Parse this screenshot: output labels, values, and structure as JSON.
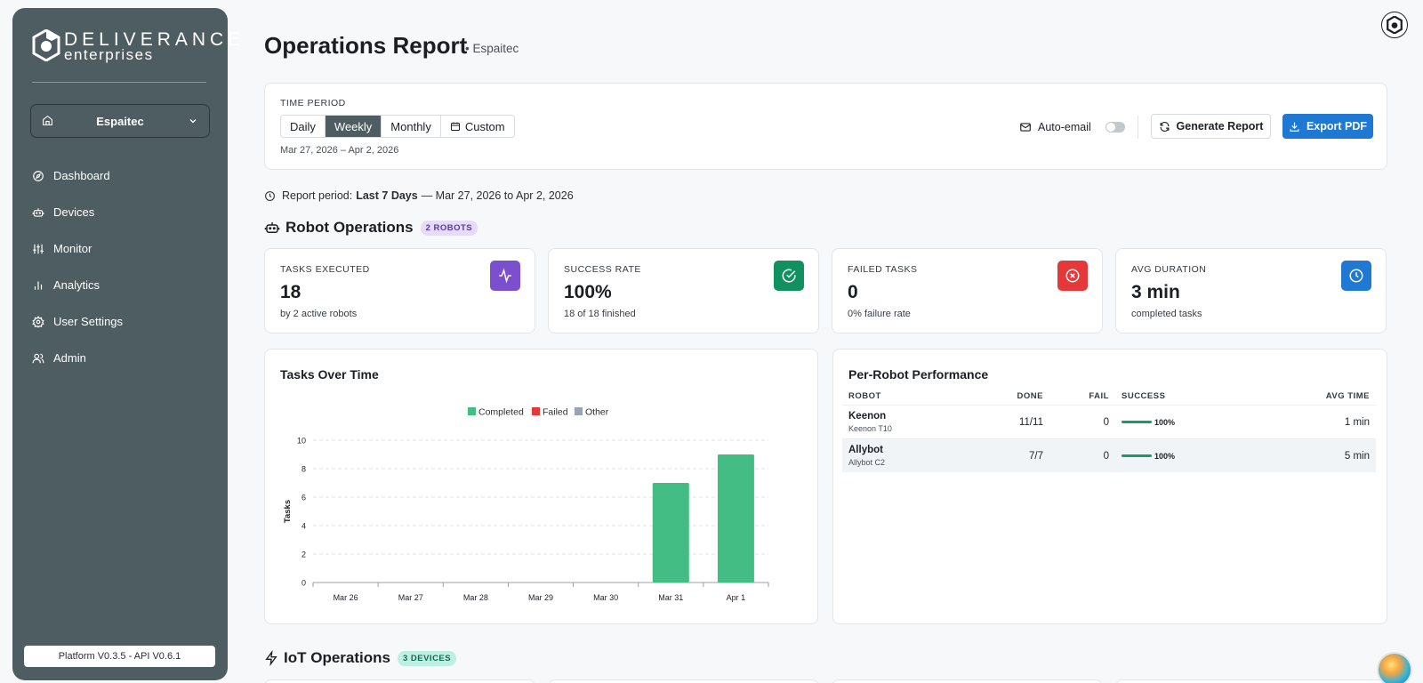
{
  "brand": {
    "name_line1": "DELIVERANCE",
    "name_line2": "enterprises"
  },
  "sidebar": {
    "org": "Espaitec",
    "items": [
      {
        "label": "Dashboard",
        "icon": "compass-icon"
      },
      {
        "label": "Devices",
        "icon": "robot-icon"
      },
      {
        "label": "Monitor",
        "icon": "sliders-icon"
      },
      {
        "label": "Analytics",
        "icon": "bar-chart-icon"
      },
      {
        "label": "User Settings",
        "icon": "gear-icon"
      },
      {
        "label": "Admin",
        "icon": "users-icon"
      }
    ],
    "version": "Platform V0.3.5 - API V0.6.1"
  },
  "header": {
    "title": "Operations Report",
    "subtitle": "• Espaitec"
  },
  "period": {
    "label": "TIME PERIOD",
    "options": [
      "Daily",
      "Weekly",
      "Monthly",
      "Custom"
    ],
    "selected": "Weekly",
    "range": "Mar 27, 2026 – Apr 2, 2026",
    "auto_email_label": "Auto-email",
    "auto_email_on": false,
    "generate_label": "Generate Report",
    "export_label": "Export PDF"
  },
  "report_period": {
    "prefix": "Report period:",
    "bold": "Last 7 Days",
    "suffix": "— Mar 27, 2026 to Apr 2, 2026"
  },
  "robot_ops": {
    "title": "Robot Operations",
    "badge": "2 ROBOTS",
    "stats": [
      {
        "label": "TASKS EXECUTED",
        "value": "18",
        "sub": "by 2 active robots",
        "icon": "activity-icon",
        "color": "#7c4fcf"
      },
      {
        "label": "SUCCESS RATE",
        "value": "100%",
        "sub": "18 of 18 finished",
        "icon": "check-circle-icon",
        "color": "#11915f"
      },
      {
        "label": "FAILED TASKS",
        "value": "0",
        "sub": "0% failure rate",
        "icon": "x-circle-icon",
        "color": "#e5383b"
      },
      {
        "label": "AVG DURATION",
        "value": "3 min",
        "sub": "completed tasks",
        "icon": "clock-icon",
        "color": "#1f78d1"
      }
    ]
  },
  "tasks_chart": {
    "title": "Tasks Over Time"
  },
  "chart_data": {
    "type": "bar",
    "title": "Tasks Over Time",
    "categories": [
      "Mar 26",
      "Mar 27",
      "Mar 28",
      "Mar 29",
      "Mar 30",
      "Mar 31",
      "Apr 1"
    ],
    "series": [
      {
        "name": "Completed",
        "values": [
          0,
          0,
          0,
          0,
          0,
          7,
          9
        ],
        "color": "#43bd84"
      },
      {
        "name": "Failed",
        "values": [
          0,
          0,
          0,
          0,
          0,
          0,
          0
        ],
        "color": "#e5383b"
      },
      {
        "name": "Other",
        "values": [
          0,
          0,
          0,
          0,
          0,
          0,
          0
        ],
        "color": "#98a4b3"
      }
    ],
    "ylabel": "Tasks",
    "xlabel": "",
    "ylim": [
      0,
      10
    ],
    "yticks": [
      0,
      2,
      4,
      6,
      8,
      10
    ],
    "grid": true,
    "legend": "top-center",
    "stacked": true
  },
  "perf": {
    "title": "Per-Robot Performance",
    "headers": {
      "robot": "ROBOT",
      "done": "DONE",
      "fail": "FAIL",
      "success": "SUCCESS",
      "avg": "AVG TIME"
    },
    "rows": [
      {
        "name": "Keenon",
        "model": "Keenon T10",
        "done": "11/11",
        "fail": "0",
        "success": "100%",
        "success_fraction": 1.0,
        "avg": "1 min"
      },
      {
        "name": "Allybot",
        "model": "Allybot C2",
        "done": "7/7",
        "fail": "0",
        "success": "100%",
        "success_fraction": 1.0,
        "avg": "5 min"
      }
    ]
  },
  "iot_ops": {
    "title": "IoT Operations",
    "badge": "3 DEVICES"
  }
}
